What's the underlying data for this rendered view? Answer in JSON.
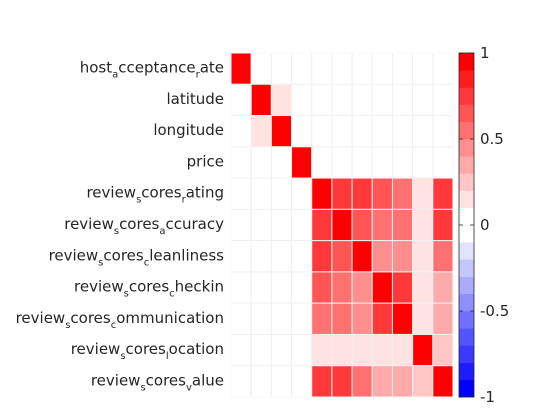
{
  "chart_data": {
    "type": "heatmap",
    "title": "",
    "xlabel": "",
    "ylabel": "",
    "x_tick_labels_visible": false,
    "rows": [
      {
        "pre": "host",
        "sub1": "a",
        "mid": "cceptance",
        "sub2": "r",
        "post": "ate"
      },
      {
        "pre": "latitude",
        "sub1": "",
        "mid": "",
        "sub2": "",
        "post": ""
      },
      {
        "pre": "longitude",
        "sub1": "",
        "mid": "",
        "sub2": "",
        "post": ""
      },
      {
        "pre": "price",
        "sub1": "",
        "mid": "",
        "sub2": "",
        "post": ""
      },
      {
        "pre": "review",
        "sub1": "s",
        "mid": "cores",
        "sub2": "r",
        "post": "ating"
      },
      {
        "pre": "review",
        "sub1": "s",
        "mid": "cores",
        "sub2": "a",
        "post": "ccuracy"
      },
      {
        "pre": "review",
        "sub1": "s",
        "mid": "cores",
        "sub2": "c",
        "post": "leanliness"
      },
      {
        "pre": "review",
        "sub1": "s",
        "mid": "cores",
        "sub2": "c",
        "post": "heckin"
      },
      {
        "pre": "review",
        "sub1": "s",
        "mid": "cores",
        "sub2": "c",
        "post": "ommunication"
      },
      {
        "pre": "review",
        "sub1": "s",
        "mid": "cores",
        "sub2": "l",
        "post": "ocation"
      },
      {
        "pre": "review",
        "sub1": "s",
        "mid": "cores",
        "sub2": "v",
        "post": "alue"
      }
    ],
    "values": [
      [
        1,
        0,
        0,
        0,
        0,
        0,
        0,
        0,
        0,
        0,
        0
      ],
      [
        0,
        1,
        0.1,
        0,
        0,
        0,
        0,
        0,
        0,
        0,
        0
      ],
      [
        0,
        0.1,
        1,
        -0.05,
        0,
        0,
        0,
        0,
        0,
        -0.05,
        0
      ],
      [
        0,
        0,
        -0.05,
        1,
        0,
        0,
        0,
        0,
        0,
        0.05,
        0
      ],
      [
        0,
        0,
        0,
        0,
        1,
        0.7,
        0.7,
        0.6,
        0.55,
        0.15,
        0.75
      ],
      [
        0,
        0,
        0,
        0,
        0.7,
        1,
        0.6,
        0.5,
        0.5,
        0.15,
        0.7
      ],
      [
        0,
        0,
        0,
        0,
        0.7,
        0.6,
        1,
        0.4,
        0.4,
        0.1,
        0.55
      ],
      [
        0,
        0,
        0,
        0,
        0.6,
        0.5,
        0.4,
        1,
        0.7,
        0.15,
        0.3
      ],
      [
        0,
        0,
        0,
        0,
        0.55,
        0.5,
        0.4,
        0.7,
        1,
        0.15,
        0.35
      ],
      [
        0,
        0,
        -0.05,
        0.05,
        0.15,
        0.15,
        0.1,
        0.15,
        0.15,
        1,
        0.2
      ],
      [
        0,
        0,
        0,
        0,
        0.75,
        0.7,
        0.55,
        0.3,
        0.35,
        0.2,
        1
      ]
    ],
    "clim": [
      -1,
      1
    ],
    "colormap": {
      "levels": 20,
      "low": "#0000ff",
      "mid": "#ffffff",
      "high": "#ff0000"
    },
    "colorbar": {
      "ticks": [
        -1,
        -0.5,
        0,
        0.5,
        1
      ],
      "tick_labels": [
        "-1",
        "-0.5",
        "0",
        "0.5",
        "1"
      ],
      "position": "right"
    },
    "grid": true
  }
}
